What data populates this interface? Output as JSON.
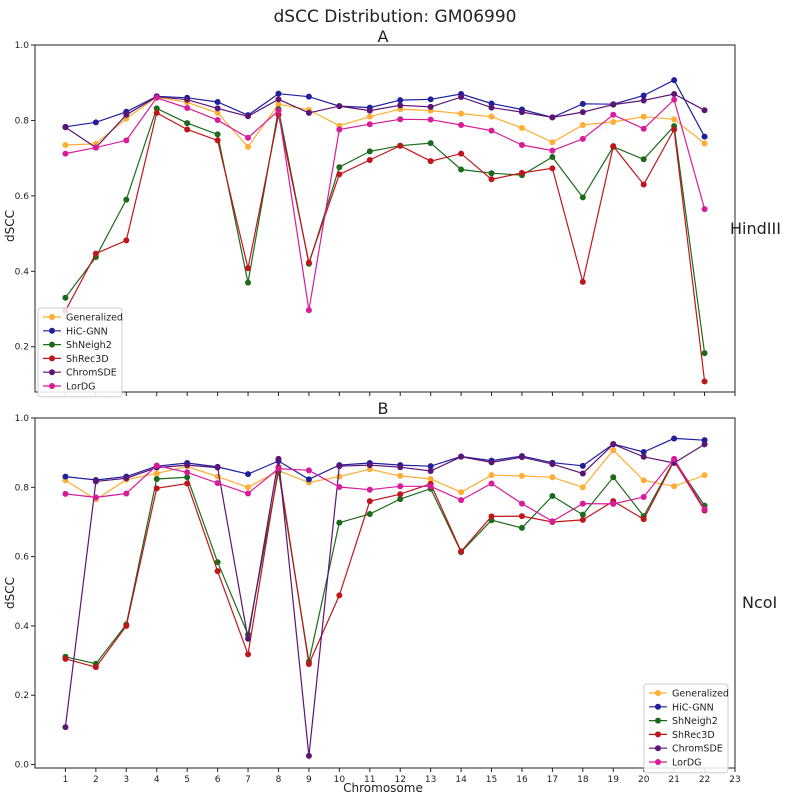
{
  "figure": {
    "title": "dSCC Distribution: GM06990",
    "xlabel": "Chromosome"
  },
  "colors": {
    "Generalized": "#ffad33",
    "HiC-GNN": "#1f1f9e",
    "ShNeigh2": "#1b6b1b",
    "ShRec3D": "#c0161b",
    "ChromSDE": "#5c1475",
    "LorDG": "#d81b9b"
  },
  "chart_data": [
    {
      "type": "line",
      "panel": "A",
      "title": "A",
      "side_label": "HindIII",
      "xlabel": "",
      "ylabel": "dSCC",
      "xlim": [
        0,
        23
      ],
      "ylim": [
        0.08,
        1.0
      ],
      "yticks": [
        0.2,
        0.4,
        0.6,
        0.8,
        1.0
      ],
      "yticklabels": [
        "0.2",
        "0.4",
        "0.6",
        "0.8",
        "1.0"
      ],
      "legend_position": "lower-left",
      "x": [
        1,
        2,
        3,
        4,
        5,
        6,
        7,
        8,
        9,
        10,
        11,
        12,
        13,
        14,
        15,
        16,
        17,
        18,
        19,
        20,
        21,
        22
      ],
      "series": [
        {
          "name": "Generalized",
          "values": [
            0.735,
            0.738,
            0.805,
            0.862,
            0.848,
            0.82,
            0.73,
            0.843,
            0.828,
            0.786,
            0.81,
            0.83,
            0.826,
            0.818,
            0.81,
            0.78,
            0.742,
            0.788,
            0.796,
            0.81,
            0.803,
            0.739
          ]
        },
        {
          "name": "HiC-GNN",
          "values": [
            0.783,
            0.795,
            0.823,
            0.864,
            0.86,
            0.849,
            0.814,
            0.871,
            0.863,
            0.838,
            0.834,
            0.854,
            0.856,
            0.87,
            0.845,
            0.829,
            0.808,
            0.844,
            0.843,
            0.866,
            0.907,
            0.757
          ]
        },
        {
          "name": "ShNeigh2",
          "values": [
            0.33,
            0.438,
            0.59,
            0.832,
            0.793,
            0.763,
            0.37,
            0.83,
            0.42,
            0.676,
            0.718,
            0.733,
            0.74,
            0.67,
            0.66,
            0.655,
            0.703,
            0.596,
            0.73,
            0.697,
            0.785,
            0.183
          ]
        },
        {
          "name": "ShRec3D",
          "values": [
            0.295,
            0.447,
            0.482,
            0.82,
            0.776,
            0.747,
            0.408,
            0.815,
            0.423,
            0.657,
            0.695,
            0.733,
            0.692,
            0.712,
            0.644,
            0.661,
            0.673,
            0.372,
            0.732,
            0.63,
            0.776,
            0.108
          ]
        },
        {
          "name": "ChromSDE",
          "values": [
            0.782,
            0.728,
            0.815,
            0.863,
            0.855,
            0.832,
            0.811,
            0.856,
            0.82,
            0.838,
            0.826,
            0.84,
            0.836,
            0.862,
            0.834,
            0.822,
            0.808,
            0.822,
            0.842,
            0.853,
            0.87,
            0.827
          ]
        },
        {
          "name": "LorDG",
          "values": [
            0.712,
            0.728,
            0.747,
            0.86,
            0.833,
            0.801,
            0.754,
            0.826,
            0.297,
            0.776,
            0.79,
            0.803,
            0.802,
            0.788,
            0.773,
            0.735,
            0.72,
            0.751,
            0.815,
            0.778,
            0.855,
            0.565
          ]
        }
      ]
    },
    {
      "type": "line",
      "panel": "B",
      "title": "B",
      "side_label": "NcoI",
      "xlabel": "Chromosome",
      "ylabel": "dSCC",
      "xlim": [
        0,
        23
      ],
      "ylim": [
        -0.01,
        1.0
      ],
      "xticks": [
        1,
        2,
        3,
        4,
        5,
        6,
        7,
        8,
        9,
        10,
        11,
        12,
        13,
        14,
        15,
        16,
        17,
        18,
        19,
        20,
        21,
        22,
        23
      ],
      "xticklabels": [
        "1",
        "2",
        "3",
        "4",
        "5",
        "6",
        "7",
        "8",
        "9",
        "10",
        "11",
        "12",
        "13",
        "14",
        "15",
        "16",
        "17",
        "18",
        "19",
        "20",
        "21",
        "22",
        "23"
      ],
      "yticks": [
        0.0,
        0.2,
        0.4,
        0.6,
        0.8,
        1.0
      ],
      "yticklabels": [
        "0.0",
        "0.2",
        "0.4",
        "0.6",
        "0.8",
        "1.0"
      ],
      "legend_position": "lower-right",
      "x": [
        1,
        2,
        3,
        4,
        5,
        6,
        7,
        8,
        9,
        10,
        11,
        12,
        13,
        14,
        15,
        16,
        17,
        18,
        19,
        20,
        21,
        22
      ],
      "series": [
        {
          "name": "Generalized",
          "values": [
            0.82,
            0.765,
            0.822,
            0.84,
            0.86,
            0.831,
            0.8,
            0.848,
            0.814,
            0.831,
            0.852,
            0.833,
            0.824,
            0.786,
            0.835,
            0.833,
            0.829,
            0.8,
            0.907,
            0.82,
            0.803,
            0.835
          ]
        },
        {
          "name": "HiC-GNN",
          "values": [
            0.831,
            0.821,
            0.831,
            0.861,
            0.87,
            0.859,
            0.838,
            0.876,
            0.823,
            0.864,
            0.87,
            0.864,
            0.861,
            0.889,
            0.877,
            0.89,
            0.871,
            0.862,
            0.925,
            0.902,
            0.941,
            0.936
          ]
        },
        {
          "name": "ShNeigh2",
          "values": [
            0.311,
            0.291,
            0.404,
            0.824,
            0.829,
            0.584,
            0.375,
            0.846,
            0.297,
            0.698,
            0.723,
            0.766,
            0.796,
            0.613,
            0.705,
            0.683,
            0.775,
            0.721,
            0.829,
            0.717,
            0.878,
            0.747
          ]
        },
        {
          "name": "ShRec3D",
          "values": [
            0.305,
            0.281,
            0.4,
            0.797,
            0.811,
            0.558,
            0.318,
            0.858,
            0.29,
            0.488,
            0.76,
            0.78,
            0.81,
            0.615,
            0.716,
            0.717,
            0.7,
            0.706,
            0.76,
            0.708,
            0.876,
            0.733
          ]
        },
        {
          "name": "ChromSDE",
          "values": [
            0.108,
            0.817,
            0.826,
            0.857,
            0.864,
            0.857,
            0.363,
            0.882,
            0.025,
            0.861,
            0.864,
            0.858,
            0.847,
            0.888,
            0.872,
            0.887,
            0.867,
            0.84,
            0.924,
            0.888,
            0.87,
            0.924
          ]
        },
        {
          "name": "LorDG",
          "values": [
            0.781,
            0.771,
            0.782,
            0.863,
            0.843,
            0.812,
            0.782,
            0.854,
            0.849,
            0.801,
            0.793,
            0.803,
            0.803,
            0.763,
            0.811,
            0.753,
            0.702,
            0.753,
            0.752,
            0.772,
            0.882,
            0.737
          ]
        }
      ]
    }
  ]
}
